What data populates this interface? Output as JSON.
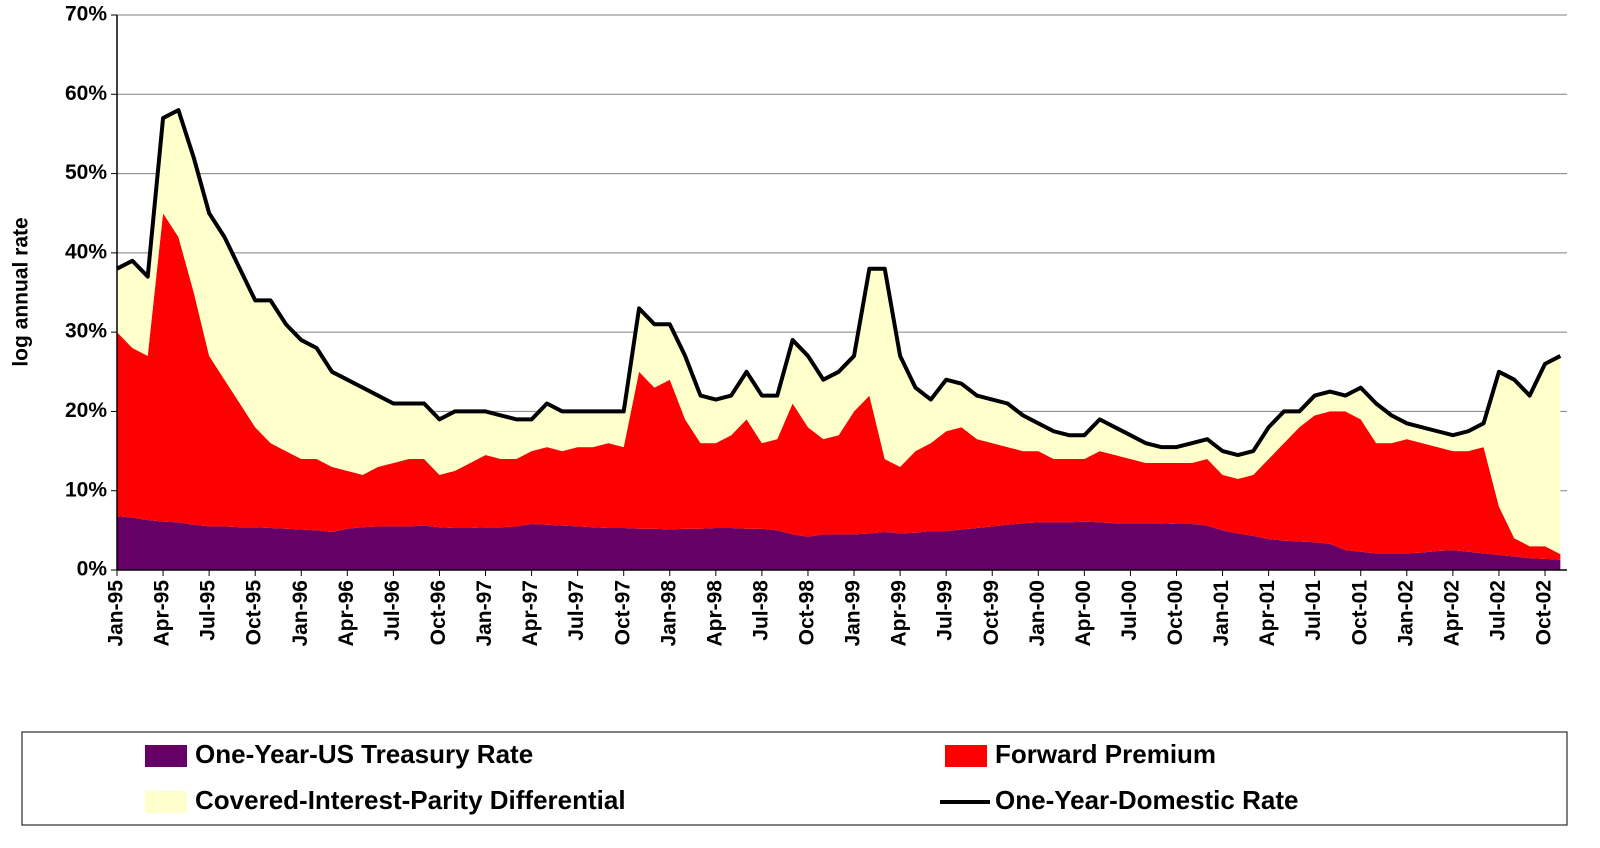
{
  "chart_data": {
    "type": "area",
    "y_label": "log annual rate",
    "categories": [
      "Jan-95",
      null,
      null,
      "Apr-95",
      null,
      null,
      "Jul-95",
      null,
      null,
      "Oct-95",
      null,
      null,
      "Jan-96",
      null,
      null,
      "Apr-96",
      null,
      null,
      "Jul-96",
      null,
      null,
      "Oct-96",
      null,
      null,
      "Jan-97",
      null,
      null,
      "Apr-97",
      null,
      null,
      "Jul-97",
      null,
      null,
      "Oct-97",
      null,
      null,
      "Jan-98",
      null,
      null,
      "Apr-98",
      null,
      null,
      "Jul-98",
      null,
      null,
      "Oct-98",
      null,
      null,
      "Jan-99",
      null,
      null,
      "Apr-99",
      null,
      null,
      "Jul-99",
      null,
      null,
      "Oct-99",
      null,
      null,
      "Jan-00",
      null,
      null,
      "Apr-00",
      null,
      null,
      "Jul-00",
      null,
      null,
      "Oct-00",
      null,
      null,
      "Jan-01",
      null,
      null,
      "Apr-01",
      null,
      null,
      "Jul-01",
      null,
      null,
      "Oct-01",
      null,
      null,
      "Jan-02",
      null,
      null,
      "Apr-02",
      null,
      null,
      "Jul-02",
      null,
      null,
      "Oct-02",
      null
    ],
    "series": [
      {
        "name": "One-Year-US Treasury Rate",
        "color": "#660066",
        "type": "area",
        "values": [
          6.8,
          6.6,
          6.3,
          6.1,
          6.0,
          5.7,
          5.5,
          5.5,
          5.4,
          5.4,
          5.3,
          5.2,
          5.1,
          5.0,
          4.8,
          5.2,
          5.4,
          5.5,
          5.5,
          5.5,
          5.6,
          5.4,
          5.3,
          5.3,
          5.4,
          5.4,
          5.5,
          5.8,
          5.7,
          5.6,
          5.5,
          5.4,
          5.3,
          5.3,
          5.2,
          5.2,
          5.1,
          5.2,
          5.2,
          5.3,
          5.3,
          5.2,
          5.2,
          5.0,
          4.5,
          4.2,
          4.5,
          4.5,
          4.5,
          4.6,
          4.8,
          4.6,
          4.7,
          4.9,
          4.9,
          5.1,
          5.3,
          5.5,
          5.7,
          5.9,
          6.0,
          6.0,
          6.0,
          6.1,
          6.0,
          5.9,
          5.9,
          5.9,
          5.9,
          5.8,
          5.8,
          5.6,
          5.0,
          4.6,
          4.3,
          3.9,
          3.7,
          3.6,
          3.5,
          3.3,
          2.5,
          2.3,
          2.1,
          2.1,
          2.1,
          2.2,
          2.4,
          2.5,
          2.3,
          2.1,
          1.9,
          1.7,
          1.5,
          1.4,
          1.3
        ]
      },
      {
        "name": "Forward Premium",
        "color": "#ff0000",
        "type": "area",
        "values": [
          23.2,
          21.4,
          20.7,
          38.9,
          36,
          29.3,
          21.5,
          18.5,
          15.6,
          12.6,
          10.7,
          9.8,
          8.9,
          9,
          8.2,
          7.3,
          6.6,
          7.5,
          8,
          8.5,
          8.4,
          6.6,
          7.2,
          8.2,
          9.1,
          8.6,
          8.5,
          9.2,
          9.8,
          9.4,
          10,
          10.1,
          10.7,
          10.2,
          19.8,
          17.8,
          18.9,
          13.8,
          10.8,
          10.7,
          11.7,
          13.8,
          10.8,
          11.5,
          16.5,
          13.8,
          12,
          12.5,
          15.5,
          17.4,
          9.2,
          8.4,
          10.3,
          11.1,
          12.6,
          12.9,
          11.2,
          10.5,
          9.8,
          9.1,
          9,
          8,
          8,
          7.9,
          9,
          8.6,
          8.1,
          7.6,
          7.6,
          7.7,
          7.7,
          8.4,
          7,
          6.9,
          7.7,
          10.1,
          12.3,
          14.4,
          16,
          16.7,
          17.5,
          16.7,
          13.9,
          13.9,
          14.4,
          13.8,
          13.1,
          12.5,
          12.7,
          13.4,
          6.1,
          2.3,
          1.5,
          1.6,
          0.7
        ]
      },
      {
        "name": "Covered-Interest-Parity Differential",
        "color": "#ffffcc",
        "type": "area",
        "values": [
          8,
          11,
          10,
          12,
          16,
          17,
          18,
          18,
          17,
          16,
          18,
          16,
          15,
          14,
          12,
          11.5,
          11,
          9,
          7.5,
          7,
          7,
          7,
          7.5,
          6.5,
          5.5,
          5.5,
          5,
          4,
          5.5,
          5,
          4.5,
          4.5,
          4,
          4.5,
          8,
          8,
          7,
          8,
          6,
          5.5,
          5,
          6,
          6,
          5.5,
          8,
          9,
          7.5,
          8,
          7,
          16,
          24,
          14,
          8,
          5.5,
          6.5,
          5.5,
          5.5,
          5.5,
          5.5,
          4.5,
          3.5,
          3.5,
          3,
          3,
          4,
          3.5,
          3,
          2.5,
          2,
          2,
          2.5,
          2.5,
          3,
          3,
          3,
          4,
          4,
          2,
          2.5,
          2.5,
          2,
          4,
          5,
          3.5,
          2,
          2,
          2,
          2,
          2.5,
          3,
          17,
          20,
          19,
          23,
          25
        ]
      },
      {
        "name": "One-Year-Domestic Rate",
        "color": "#000000",
        "type": "line",
        "values": [
          38,
          39,
          37,
          57,
          58,
          52,
          45,
          42,
          38,
          34,
          34,
          31,
          29,
          28,
          25,
          24,
          23,
          22,
          21,
          21,
          21,
          19,
          20,
          20,
          20,
          19.5,
          19,
          19,
          21,
          20,
          20,
          20,
          20,
          20,
          33,
          31,
          31,
          27,
          22,
          21.5,
          22,
          25,
          22,
          22,
          29,
          27,
          24,
          25,
          27,
          38,
          38,
          27,
          23,
          21.5,
          24,
          23.5,
          22,
          21.5,
          21,
          19.5,
          18.5,
          17.5,
          17,
          17,
          19,
          18,
          17,
          16,
          15.5,
          15.5,
          16,
          16.5,
          15,
          14.5,
          15,
          18,
          20,
          20,
          22,
          22.5,
          22,
          23,
          21,
          19.5,
          18.5,
          18,
          17.5,
          17,
          17.5,
          18.5,
          25,
          24,
          22,
          26,
          27
        ]
      }
    ],
    "ylim": [
      0,
      70
    ],
    "yticks": [
      {
        "value": 0,
        "label": "0%"
      },
      {
        "value": 10,
        "label": "10%"
      },
      {
        "value": 20,
        "label": "20%"
      },
      {
        "value": 30,
        "label": "30%"
      },
      {
        "value": 40,
        "label": "40%"
      },
      {
        "value": 50,
        "label": "50%"
      },
      {
        "value": 60,
        "label": "60%"
      },
      {
        "value": 70,
        "label": "70%"
      }
    ],
    "grid": true
  }
}
